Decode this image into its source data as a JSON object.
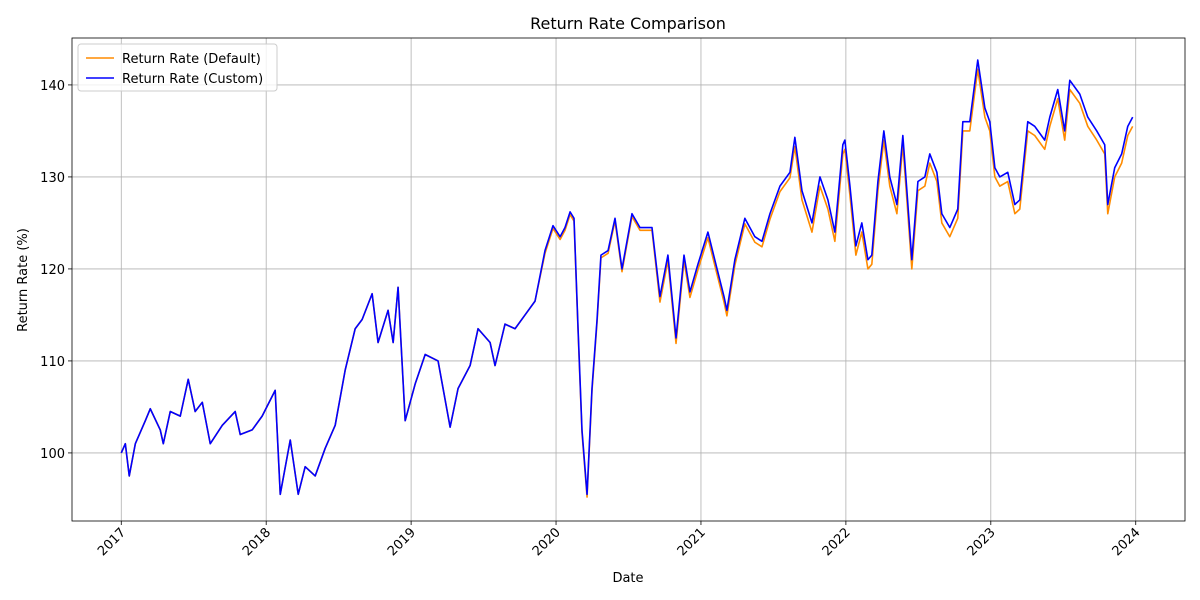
{
  "chart_data": {
    "type": "line",
    "title": "Return Rate Comparison",
    "x_label": "Date",
    "y_label": "Return Rate (%)",
    "x": [
      2017.0,
      2017.028,
      2017.055,
      2017.097,
      2017.166,
      2017.2,
      2017.269,
      2017.29,
      2017.338,
      2017.407,
      2017.462,
      2017.51,
      2017.559,
      2017.614,
      2017.697,
      2017.786,
      2017.821,
      2017.903,
      2017.972,
      2018.062,
      2018.097,
      2018.166,
      2018.221,
      2018.269,
      2018.338,
      2018.407,
      2018.476,
      2018.545,
      2018.614,
      2018.662,
      2018.731,
      2018.772,
      2018.841,
      2018.876,
      2018.91,
      2018.959,
      2019.028,
      2019.097,
      2019.186,
      2019.269,
      2019.324,
      2019.407,
      2019.462,
      2019.545,
      2019.579,
      2019.648,
      2019.717,
      2019.786,
      2019.855,
      2019.924,
      2019.979,
      2020.028,
      2020.062,
      2020.097,
      2020.124,
      2020.152,
      2020.179,
      2020.214,
      2020.248,
      2020.283,
      2020.31,
      2020.359,
      2020.407,
      2020.455,
      2020.524,
      2020.579,
      2020.662,
      2020.717,
      2020.772,
      2020.828,
      2020.883,
      2020.924,
      2020.979,
      2021.048,
      2021.103,
      2021.159,
      2021.179,
      2021.234,
      2021.303,
      2021.372,
      2021.421,
      2021.476,
      2021.545,
      2021.614,
      2021.648,
      2021.697,
      2021.766,
      2021.821,
      2021.876,
      2021.924,
      2021.979,
      2021.993,
      2022.028,
      2022.069,
      2022.11,
      2022.152,
      2022.179,
      2022.221,
      2022.262,
      2022.303,
      2022.352,
      2022.393,
      2022.421,
      2022.455,
      2022.497,
      2022.545,
      2022.579,
      2022.628,
      2022.662,
      2022.717,
      2022.772,
      2022.807,
      2022.855,
      2022.91,
      2022.959,
      2022.993,
      2023.028,
      2023.062,
      2023.117,
      2023.166,
      2023.2,
      2023.255,
      2023.303,
      2023.372,
      2023.407,
      2023.462,
      2023.51,
      2023.545,
      2023.614,
      2023.669,
      2023.731,
      2023.786,
      2023.807,
      2023.855,
      2023.903,
      2023.945,
      2023.979
    ],
    "series": [
      {
        "name": "Return Rate (Default)",
        "color": "#ff8c00",
        "values": [
          100,
          101,
          97.5,
          101,
          103.5,
          104.8,
          102.5,
          101,
          104.5,
          104,
          108,
          104.5,
          105.5,
          101,
          103,
          104.5,
          102,
          102.5,
          104,
          106.8,
          95.5,
          101.4,
          95.5,
          98.5,
          97.5,
          100.5,
          103,
          109,
          113.5,
          114.5,
          117.3,
          112,
          115.5,
          112,
          118,
          103.5,
          107.5,
          110.7,
          110,
          102.8,
          107,
          109.5,
          113.5,
          112,
          109.5,
          114,
          113.5,
          115,
          116.5,
          121.7,
          124.4,
          123.2,
          124.2,
          125.9,
          125.2,
          113.2,
          102.2,
          95.2,
          106.7,
          114.2,
          121.2,
          121.7,
          125.2,
          119.7,
          125.7,
          124.2,
          124.2,
          116.4,
          120.9,
          111.9,
          120.9,
          116.9,
          119.9,
          123.4,
          119.9,
          116.4,
          114.9,
          120.4,
          124.9,
          122.9,
          122.4,
          125.4,
          128.4,
          129.9,
          133.3,
          127.5,
          124,
          129,
          126.5,
          123,
          132.5,
          133,
          128,
          121.5,
          124,
          120,
          120.5,
          128.5,
          134,
          129,
          126,
          133.5,
          127.5,
          120,
          128.5,
          129,
          131.5,
          129.5,
          125,
          123.5,
          125.5,
          135,
          135,
          141.7,
          136.5,
          135,
          130,
          129,
          129.5,
          126,
          126.5,
          135,
          134.5,
          133,
          135.5,
          138.5,
          134,
          139.5,
          138,
          135.5,
          134,
          132.5,
          126,
          130,
          131.5,
          134.5,
          135.5
        ]
      },
      {
        "name": "Return Rate (Custom)",
        "color": "#0000ff",
        "values": [
          100,
          101,
          97.5,
          101,
          103.5,
          104.8,
          102.5,
          101,
          104.5,
          104,
          108,
          104.5,
          105.5,
          101,
          103,
          104.5,
          102,
          102.5,
          104,
          106.8,
          95.5,
          101.4,
          95.5,
          98.5,
          97.5,
          100.5,
          103,
          109,
          113.5,
          114.5,
          117.3,
          112,
          115.5,
          112,
          118,
          103.5,
          107.5,
          110.7,
          110,
          102.8,
          107,
          109.5,
          113.5,
          112,
          109.5,
          114,
          113.5,
          115,
          116.5,
          122,
          124.7,
          123.5,
          124.5,
          126.2,
          125.5,
          113.5,
          102.5,
          95.5,
          107,
          114.5,
          121.5,
          122,
          125.5,
          120,
          126,
          124.5,
          124.5,
          117,
          121.5,
          112.5,
          121.5,
          117.5,
          120.5,
          124,
          120.5,
          117,
          115.5,
          121,
          125.5,
          123.5,
          123,
          126,
          129,
          130.5,
          134.3,
          128.5,
          125,
          130,
          127.5,
          124,
          133.5,
          134,
          129,
          122.5,
          125,
          121,
          121.5,
          129.5,
          135,
          130,
          127,
          134.5,
          128.5,
          121,
          129.5,
          130,
          132.5,
          130.5,
          126,
          124.5,
          126.5,
          136,
          136,
          142.7,
          137.5,
          136,
          131,
          130,
          130.5,
          127,
          127.5,
          136,
          135.5,
          134,
          136.5,
          139.5,
          135,
          140.5,
          139,
          136.5,
          135,
          133.5,
          127,
          131,
          132.5,
          135.5,
          136.5
        ]
      }
    ],
    "xlim": [
      2016.66,
      2024.34
    ],
    "xticks": [
      2017,
      2018,
      2019,
      2020,
      2021,
      2022,
      2023,
      2024
    ],
    "ylim": [
      92.6,
      145.1
    ],
    "yticks": [
      100,
      110,
      120,
      130,
      140
    ],
    "grid": true,
    "legend": "upper left"
  }
}
